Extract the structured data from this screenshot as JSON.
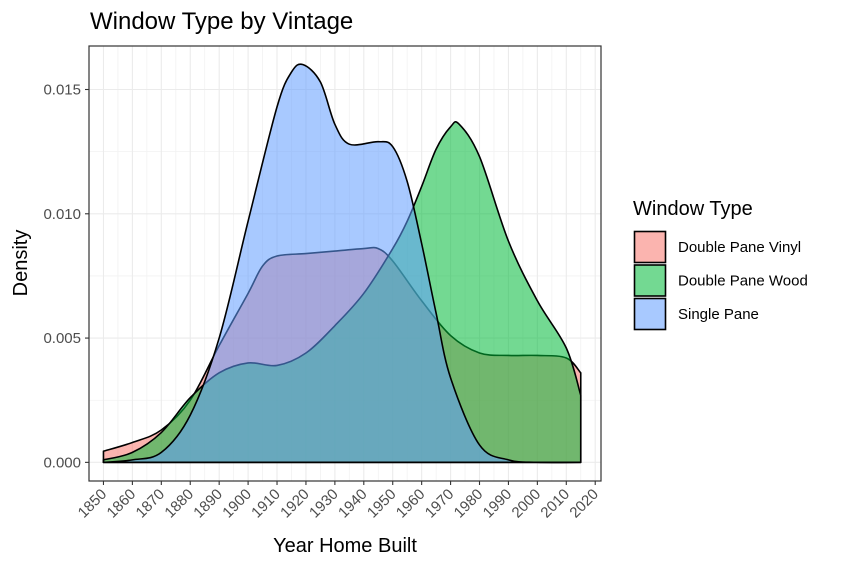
{
  "chart_data": {
    "type": "area",
    "title": "Window Type by Vintage",
    "xlabel": "Year Home Built",
    "ylabel": "Density",
    "xlim": [
      1845,
      2022
    ],
    "ylim": [
      -0.00075,
      0.01675
    ],
    "x_ticks": [
      1850,
      1860,
      1870,
      1880,
      1890,
      1900,
      1910,
      1920,
      1930,
      1940,
      1950,
      1960,
      1970,
      1980,
      1990,
      2000,
      2010,
      2020
    ],
    "x_tick_labels": [
      "1850",
      "1860",
      "1870",
      "1880",
      "1890",
      "1900",
      "1910",
      "1920",
      "1930",
      "1940",
      "1950",
      "1960",
      "1970",
      "1980",
      "1990",
      "2000",
      "2010",
      "2020"
    ],
    "y_ticks": [
      0,
      0.005,
      0.01,
      0.015
    ],
    "y_tick_labels": [
      "0.000",
      "0.005",
      "0.010",
      "0.015"
    ],
    "grid": true,
    "legend": {
      "title": "Window Type",
      "position": "right",
      "entries": [
        "Double Pane Vinyl",
        "Double Pane Wood",
        "Single Pane"
      ]
    },
    "series": [
      {
        "name": "Double Pane Vinyl",
        "fill": "#F8766D",
        "x": [
          1850,
          1860,
          1870,
          1880,
          1890,
          1900,
          1905,
          1910,
          1920,
          1930,
          1940,
          1945,
          1950,
          1960,
          1970,
          1980,
          1990,
          2000,
          2010,
          2015
        ],
        "y": [
          0.00045,
          0.0008,
          0.0013,
          0.0025,
          0.0047,
          0.0068,
          0.0079,
          0.0083,
          0.0084,
          0.0085,
          0.0086,
          0.0086,
          0.0081,
          0.0065,
          0.0051,
          0.0044,
          0.0043,
          0.0043,
          0.0042,
          0.0036
        ]
      },
      {
        "name": "Double Pane Wood",
        "fill": "#00BA38",
        "x": [
          1850,
          1860,
          1870,
          1880,
          1890,
          1900,
          1910,
          1920,
          1930,
          1940,
          1950,
          1955,
          1960,
          1965,
          1970,
          1973,
          1980,
          1990,
          2000,
          2010,
          2015
        ],
        "y": [
          0.0001,
          0.0004,
          0.0012,
          0.0026,
          0.0036,
          0.004,
          0.0039,
          0.0044,
          0.0055,
          0.0068,
          0.0086,
          0.0097,
          0.0111,
          0.0126,
          0.0135,
          0.0136,
          0.0123,
          0.0089,
          0.0065,
          0.0046,
          0.0027
        ]
      },
      {
        "name": "Single Pane",
        "fill": "#619CFF",
        "x": [
          1850,
          1860,
          1870,
          1880,
          1890,
          1900,
          1910,
          1915,
          1919,
          1925,
          1930,
          1935,
          1945,
          1950,
          1955,
          1960,
          1965,
          1970,
          1980,
          1990,
          2000,
          2015
        ],
        "y": [
          0.0,
          0.0001,
          0.0004,
          0.0019,
          0.005,
          0.0097,
          0.0143,
          0.0157,
          0.016,
          0.0153,
          0.0136,
          0.0128,
          0.0129,
          0.0127,
          0.0113,
          0.0088,
          0.006,
          0.0034,
          0.0007,
          0.0001,
          0.0,
          0.0
        ]
      }
    ]
  }
}
